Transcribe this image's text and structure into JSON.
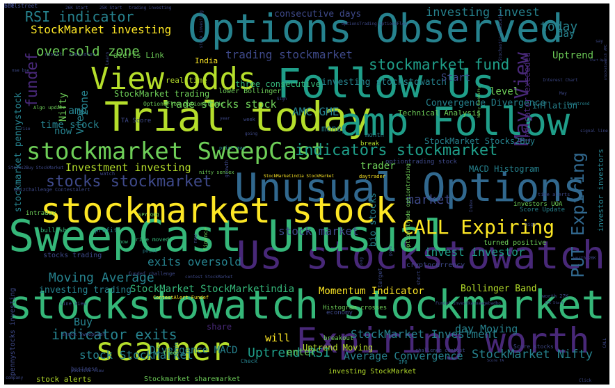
{
  "palette": {
    "background": "#000000",
    "yellow": "#fde725",
    "lime": "#b5de2b",
    "green": "#6ece58",
    "teal_green": "#35b779",
    "teal": "#1f9e89",
    "blue_teal": "#26828e",
    "blue": "#31688e",
    "indigo": "#3e4989",
    "purple": "#482878",
    "dark_purple": "#440154"
  },
  "words": [
    {
      "text": "stockstowatch stockmarket",
      "color": "#35b779"
    },
    {
      "text": "Us stockstowatch",
      "color": "#482878"
    },
    {
      "text": "Unusual Options",
      "color": "#31688e"
    },
    {
      "text": "SweepCast Unusual",
      "color": "#35b779"
    },
    {
      "text": "Options Observed",
      "color": "#26828e"
    },
    {
      "text": "Follow Us",
      "color": "#1f9e89"
    },
    {
      "text": "Trial today",
      "color": "#b5de2b"
    },
    {
      "text": "amp Follow",
      "color": "#1f9e89"
    },
    {
      "text": "stockmarket stock",
      "color": "#fde725"
    },
    {
      "text": "Expiring worth",
      "color": "#482878"
    },
    {
      "text": "scanner",
      "color": "#b5de2b"
    },
    {
      "text": "View odds",
      "color": "#b5de2b"
    },
    {
      "text": "stockmarket SweepCast",
      "color": "#6ece58"
    },
    {
      "text": "CALL Expiring",
      "color": "#fde725"
    },
    {
      "text": "indicators stockmarket",
      "color": "#1f9e89"
    },
    {
      "text": "stocks stockmarket",
      "color": "#3e4989"
    },
    {
      "text": "stockmarket fund",
      "color": "#1f9e89"
    },
    {
      "text": "May View",
      "color": "#482878"
    },
    {
      "text": "PUT Expiring",
      "color": "#31688e"
    },
    {
      "text": "investing invest",
      "color": "#26828e"
    },
    {
      "text": "RSI indicator",
      "color": "#26828e"
    },
    {
      "text": "oversold zone",
      "color": "#6ece58"
    },
    {
      "text": "trading stockmarket",
      "color": "#3e4989"
    },
    {
      "text": "Moving Average",
      "color": "#26828e"
    },
    {
      "text": "indicator exits",
      "color": "#26828e"
    },
    {
      "text": "StockMarket Investment",
      "color": "#26828e"
    },
    {
      "text": "Uptrend RSI",
      "color": "#1f9e89"
    },
    {
      "text": "StockMarket Nifty",
      "color": "#26828e"
    },
    {
      "text": "stock StockMarket",
      "color": "#26828e"
    },
    {
      "text": "invest investor",
      "color": "#1f9e89"
    },
    {
      "text": "exits oversold",
      "color": "#26828e"
    },
    {
      "text": "market",
      "color": "#3e4989"
    },
    {
      "text": "stock market",
      "color": "#3e4989"
    },
    {
      "text": "fundef",
      "color": "#482878"
    },
    {
      "text": "Investment investing",
      "color": "#b5de2b"
    },
    {
      "text": "trade stocks stock",
      "color": "#6ece58"
    },
    {
      "text": "AMC GME",
      "color": "#26828e"
    },
    {
      "text": "StockMarket StockMarketindia",
      "color": "#35b779"
    },
    {
      "text": "Momentum Indicator",
      "color": "#fde725"
    },
    {
      "text": "Bollinger Band",
      "color": "#b5de2b"
    },
    {
      "text": "StockMarket investing",
      "color": "#fde725"
    },
    {
      "text": "consecutive days",
      "color": "#3e4989"
    },
    {
      "text": "investing stockstowatch",
      "color": "#26828e"
    },
    {
      "text": "Convergence Divergence",
      "color": "#26828e"
    },
    {
      "text": "Technical Analysis",
      "color": "#6ece58"
    },
    {
      "text": "Average Convergence",
      "color": "#26828e"
    },
    {
      "text": "Divergence MACD",
      "color": "#26828e"
    },
    {
      "text": "investing trading",
      "color": "#26828e"
    },
    {
      "text": "Uptrend Moving",
      "color": "#b5de2b"
    },
    {
      "text": "day Moving",
      "color": "#26828e"
    },
    {
      "text": "StockMarket trading",
      "color": "#6ece58"
    },
    {
      "text": "time stock",
      "color": "#26828e"
    },
    {
      "text": "stockmarket pennystock",
      "color": "#26828e"
    },
    {
      "text": "investor investors",
      "color": "#26828e"
    },
    {
      "text": "stockstowatch AMC",
      "color": "#3e4989"
    },
    {
      "text": "Indicator exceeded",
      "color": "#482878"
    },
    {
      "text": "MACD Histogram",
      "color": "#26828e"
    },
    {
      "text": "StockMarket Stocks2Buy",
      "color": "#26828e"
    },
    {
      "text": "Uptrend",
      "color": "#6ece58"
    },
    {
      "text": "Start",
      "color": "#3e4989"
    },
    {
      "text": "level",
      "color": "#6ece58"
    },
    {
      "text": "today",
      "color": "#26828e"
    },
    {
      "text": "day",
      "color": "#26828e"
    },
    {
      "text": "inflation",
      "color": "#26828e"
    },
    {
      "text": "three consecutive",
      "color": "#35b779"
    },
    {
      "text": "real time",
      "color": "#b5de2b"
    },
    {
      "text": "alerts Link",
      "color": "#6ece58"
    },
    {
      "text": "India",
      "color": "#fde725"
    },
    {
      "text": "Nifty",
      "color": "#6ece58"
    },
    {
      "text": "zone",
      "color": "#26828e"
    },
    {
      "text": "amp",
      "color": "#26828e"
    },
    {
      "text": "now",
      "color": "#26828e"
    },
    {
      "text": "View",
      "color": "#26828e"
    },
    {
      "text": "trader",
      "color": "#6ece58"
    },
    {
      "text": "money",
      "color": "#26828e"
    },
    {
      "text": "will",
      "color": "#fde725"
    },
    {
      "text": "enter",
      "color": "#6ece58"
    },
    {
      "text": "Buy",
      "color": "#26828e"
    },
    {
      "text": "bio stocks",
      "color": "#26828e"
    },
    {
      "text": "stock alerts",
      "color": "#b5de2b"
    },
    {
      "text": "Stockmarket sharemarket",
      "color": "#6ece58"
    },
    {
      "text": "pennystocks investing",
      "color": "#3e4989"
    },
    {
      "text": "share",
      "color": "#482878"
    },
    {
      "text": "stocks trading",
      "color": "#3e4989"
    },
    {
      "text": "investing StockMarket",
      "color": "#b5de2b"
    },
    {
      "text": "optiontrading stock",
      "color": "#3e4989"
    },
    {
      "text": "lower Bollinger",
      "color": "#6ece58"
    },
    {
      "text": "Histogram crosses",
      "color": "#6ece58"
    },
    {
      "text": "price moved",
      "color": "#35b779"
    },
    {
      "text": "SPY QQQ",
      "color": "#6ece58"
    },
    {
      "text": "turned positive",
      "color": "#6ece58"
    },
    {
      "text": "cryptocurrency",
      "color": "#3e4989"
    },
    {
      "text": "Score Update",
      "color": "#26828e"
    },
    {
      "text": "investors UOA",
      "color": "#6ece58"
    },
    {
      "text": "StockMarketindia StockMarket",
      "color": "#fde725"
    },
    {
      "text": "daytrader",
      "color": "#fde725"
    },
    {
      "text": "Optionstrade optiontrading",
      "color": "#6ece58"
    },
    {
      "text": "OptionsFlow optionstrade",
      "color": "#6ece58"
    },
    {
      "text": "Algo update",
      "color": "#6ece58"
    },
    {
      "text": "TA Score",
      "color": "#3e4989"
    },
    {
      "text": "intraday",
      "color": "#6ece58"
    },
    {
      "text": "bullish",
      "color": "#35b779"
    },
    {
      "text": "profit",
      "color": "#26828e"
    },
    {
      "text": "know",
      "color": "#35b779"
    },
    {
      "text": "point",
      "color": "#26828e"
    },
    {
      "text": "finance",
      "color": "#6ece58"
    },
    {
      "text": "month",
      "color": "#26828e"
    },
    {
      "text": "break",
      "color": "#b5de2b"
    },
    {
      "text": "price may",
      "color": "#26828e"
    },
    {
      "text": "nifty sensex",
      "color": "#6ece58"
    },
    {
      "text": "economy",
      "color": "#3e4989"
    },
    {
      "text": "gain",
      "color": "#26828e"
    },
    {
      "text": "free",
      "color": "#6ece58"
    },
    {
      "text": "breakout",
      "color": "#6ece58"
    },
    {
      "text": "challenge contest",
      "color": "#3e4989"
    },
    {
      "text": "IPO",
      "color": "#26828e"
    },
    {
      "text": "Check",
      "color": "#26828e"
    },
    {
      "text": "Score stocks",
      "color": "#3e4989"
    },
    {
      "text": "line View",
      "color": "#3e4989"
    },
    {
      "text": "worth 27K",
      "color": "#3e4989"
    },
    {
      "text": "worth 26K",
      "color": "#3e4989"
    },
    {
      "text": "25K Start",
      "color": "#3e4989"
    },
    {
      "text": "26K Start",
      "color": "#3e4989"
    },
    {
      "text": "27K Start",
      "color": "#3e4989"
    },
    {
      "text": "Interest Chart",
      "color": "#3e4989"
    },
    {
      "text": "Chart Open",
      "color": "#3e4989"
    },
    {
      "text": "signal line",
      "color": "#3e4989"
    },
    {
      "text": "Downtrend",
      "color": "#26828e"
    },
    {
      "text": "trading investing",
      "color": "#3e4989"
    },
    {
      "text": "Fundef Investkaroaagebadho",
      "color": "#3e4989"
    },
    {
      "text": "Stocks2Buy StockMarket",
      "color": "#3e4989"
    },
    {
      "text": "QuizChallenge ContestAlert",
      "color": "#3e4989"
    },
    {
      "text": "contest StockMarket",
      "color": "#3e4989"
    },
    {
      "text": "ContestAlert Fundef",
      "color": "#fde725"
    },
    {
      "text": "stock SweepCast",
      "color": "#3e4989"
    },
    {
      "text": "Stochastic indicator",
      "color": "#3e4989"
    },
    {
      "text": "Nifty BankNifty",
      "color": "#6ece58"
    },
    {
      "text": "OptionsTrading OptionsFlow",
      "color": "#3e4989"
    },
    {
      "text": "stock investing",
      "color": "#3e4989"
    },
    {
      "text": "result",
      "color": "#3e4989"
    },
    {
      "text": "indicator",
      "color": "#3e4989"
    },
    {
      "text": "Learn",
      "color": "#3e4989"
    },
    {
      "text": "May",
      "color": "#3e4989"
    },
    {
      "text": "say",
      "color": "#3e4989"
    },
    {
      "text": "rise",
      "color": "#3e4989"
    },
    {
      "text": "year",
      "color": "#3e4989"
    },
    {
      "text": "week",
      "color": "#3e4989"
    },
    {
      "text": "Sign",
      "color": "#3e4989"
    },
    {
      "text": "going",
      "color": "#3e4989"
    },
    {
      "text": "high",
      "color": "#3e4989"
    },
    {
      "text": "target",
      "color": "#3e4989"
    },
    {
      "text": "new",
      "color": "#3e4989"
    },
    {
      "text": "short",
      "color": "#3e4989"
    },
    {
      "text": "good",
      "color": "#3e4989"
    },
    {
      "text": "long",
      "color": "#3e4989"
    },
    {
      "text": "Index",
      "color": "#3e4989"
    },
    {
      "text": "growth",
      "color": "#3e4989"
    },
    {
      "text": "business",
      "color": "#3e4989"
    },
    {
      "text": "company",
      "color": "#3e4989"
    },
    {
      "text": "nse bse",
      "color": "#3e4989"
    },
    {
      "text": "watch",
      "color": "#3e4989"
    },
    {
      "text": "CALL",
      "color": "#3e4989"
    },
    {
      "text": "Click",
      "color": "#3e4989"
    },
    {
      "text": "positive View",
      "color": "#3e4989"
    },
    {
      "text": "fundef challenge",
      "color": "#3e4989"
    },
    {
      "text": "time alerts",
      "color": "#3e4989"
    },
    {
      "text": "Score TA",
      "color": "#3e4989"
    },
    {
      "text": "SPY",
      "color": "#3e4989"
    },
    {
      "text": "one",
      "color": "#3e4989"
    },
    {
      "text": "bullstreet",
      "color": "#3e4989"
    }
  ]
}
